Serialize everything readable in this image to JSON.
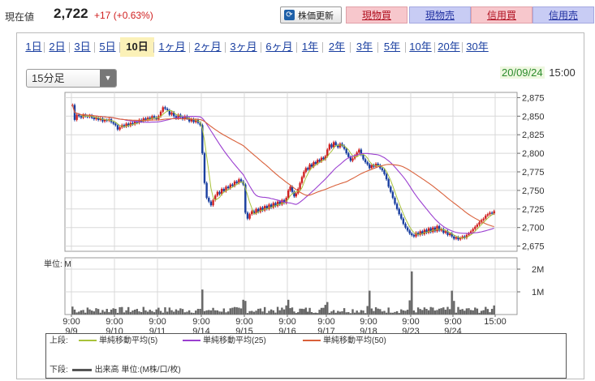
{
  "quote": {
    "price_label": "現在値",
    "price": "2,722",
    "change": "+17 (+0.63%)",
    "refresh_label": "株価更新",
    "buttons": [
      {
        "label": "現物買",
        "color": "red"
      },
      {
        "label": "現物売",
        "color": "blue"
      },
      {
        "label": "信用買",
        "color": "red"
      },
      {
        "label": "信用売",
        "color": "blue"
      }
    ]
  },
  "periods": [
    "1日",
    "2日",
    "3日",
    "5日",
    "10日",
    "1ヶ月",
    "2ヶ月",
    "3ヶ月",
    "6ヶ月",
    "1年",
    "2年",
    "3年",
    "5年",
    "10年",
    "20年",
    "30年"
  ],
  "active_period": "10日",
  "interval_select": "15分足",
  "as_of_date": "20/09/24",
  "as_of_time": "15:00",
  "volume_unit_label": "単位: M",
  "legend": {
    "upper_label": "上段:",
    "lower_label": "下段:",
    "ma5": "単純移動平均(5)",
    "ma25": "単純移動平均(25)",
    "ma50": "単純移動平均(50)",
    "volume": "出来高 単位:(M株/口/枚)"
  },
  "colors": {
    "ma5": "#a8c23a",
    "ma25": "#9b3fd0",
    "ma50": "#d9603a",
    "up": "#d02020",
    "down": "#1a3fa0",
    "volume": "#666666",
    "price_change": "#d02020"
  },
  "chart_data": {
    "type": "candlestick",
    "price_axis": {
      "ticks": [
        2875,
        2850,
        2825,
        2800,
        2775,
        2750,
        2725,
        2700,
        2675
      ],
      "tick_labels": [
        "2,875",
        "2,850",
        "2,825",
        "2,800",
        "2,775",
        "2,750",
        "2,725",
        "2,700",
        "2,675"
      ],
      "range": [
        2668,
        2882
      ]
    },
    "volume_axis": {
      "ticks": [
        2,
        1
      ],
      "tick_labels": [
        "2M",
        "1M"
      ],
      "unit": "M"
    },
    "x_ticks": [
      {
        "time": "9:00",
        "date": "9/9"
      },
      {
        "time": "9:00",
        "date": "9/10"
      },
      {
        "time": "9:00",
        "date": "9/11"
      },
      {
        "time": "9:00",
        "date": "9/14"
      },
      {
        "time": "9:00",
        "date": "9/15"
      },
      {
        "time": "9:00",
        "date": "9/16"
      },
      {
        "time": "9:00",
        "date": "9/17"
      },
      {
        "time": "9:00",
        "date": "9/18"
      },
      {
        "time": "9:00",
        "date": "9/23"
      },
      {
        "time": "9:00",
        "date": "9/24"
      },
      {
        "time": "15:00",
        "date": ""
      }
    ],
    "daily_close_path": [
      {
        "day": "9/9",
        "values": [
          2865,
          2845,
          2852,
          2850,
          2848,
          2852,
          2850,
          2849,
          2851,
          2848,
          2846,
          2848,
          2845,
          2847,
          2843,
          2845,
          2844,
          2846,
          2842,
          2840
        ]
      },
      {
        "day": "9/10",
        "values": [
          2838,
          2832,
          2835,
          2838,
          2836,
          2840,
          2837,
          2841,
          2839,
          2843,
          2841,
          2845,
          2843,
          2847,
          2845,
          2848,
          2846,
          2850,
          2848,
          2846
        ]
      },
      {
        "day": "9/11",
        "values": [
          2850,
          2856,
          2862,
          2860,
          2858,
          2852,
          2855,
          2850,
          2847,
          2852,
          2849,
          2846,
          2850,
          2847,
          2843,
          2846,
          2842,
          2845,
          2841,
          2838
        ]
      },
      {
        "day": "9/14",
        "values": [
          2800,
          2760,
          2740,
          2735,
          2730,
          2737,
          2743,
          2748,
          2745,
          2752,
          2749,
          2755,
          2753,
          2758,
          2756,
          2762,
          2760,
          2765,
          2762,
          2758
        ]
      },
      {
        "day": "9/15",
        "values": [
          2720,
          2712,
          2718,
          2722,
          2719,
          2725,
          2721,
          2727,
          2723,
          2729,
          2725,
          2731,
          2727,
          2733,
          2729,
          2735,
          2731,
          2737,
          2733,
          2740
        ]
      },
      {
        "day": "9/16",
        "values": [
          2750,
          2755,
          2748,
          2742,
          2746,
          2752,
          2760,
          2768,
          2775,
          2780,
          2778,
          2785,
          2782,
          2788,
          2786,
          2791,
          2789,
          2794,
          2792,
          2796
        ]
      },
      {
        "day": "9/17",
        "values": [
          2805,
          2812,
          2808,
          2815,
          2811,
          2808,
          2813,
          2810,
          2806,
          2800,
          2795,
          2790,
          2793,
          2797,
          2801,
          2805,
          2798,
          2792,
          2788,
          2785
        ]
      },
      {
        "day": "9/18",
        "values": [
          2780,
          2784,
          2782,
          2786,
          2784,
          2780,
          2777,
          2772,
          2765,
          2755,
          2748,
          2740,
          2732,
          2725,
          2718,
          2712,
          2705,
          2700,
          2696,
          2692
        ]
      },
      {
        "day": "9/23",
        "values": [
          2690,
          2688,
          2693,
          2690,
          2695,
          2691,
          2697,
          2693,
          2699,
          2694,
          2700,
          2695,
          2702,
          2696,
          2698,
          2693,
          2695,
          2690,
          2692,
          2688
        ]
      },
      {
        "day": "9/24",
        "values": [
          2685,
          2687,
          2684,
          2686,
          2688,
          2686,
          2690,
          2692,
          2695,
          2698,
          2701,
          2704,
          2707,
          2710,
          2712,
          2716,
          2718,
          2720,
          2719,
          2722
        ]
      }
    ],
    "volume_spikes": [
      0.35,
      0.25,
      0.3,
      1.1,
      0.6,
      0.65,
      0.55,
      1.05,
      1.9,
      0.6
    ]
  }
}
